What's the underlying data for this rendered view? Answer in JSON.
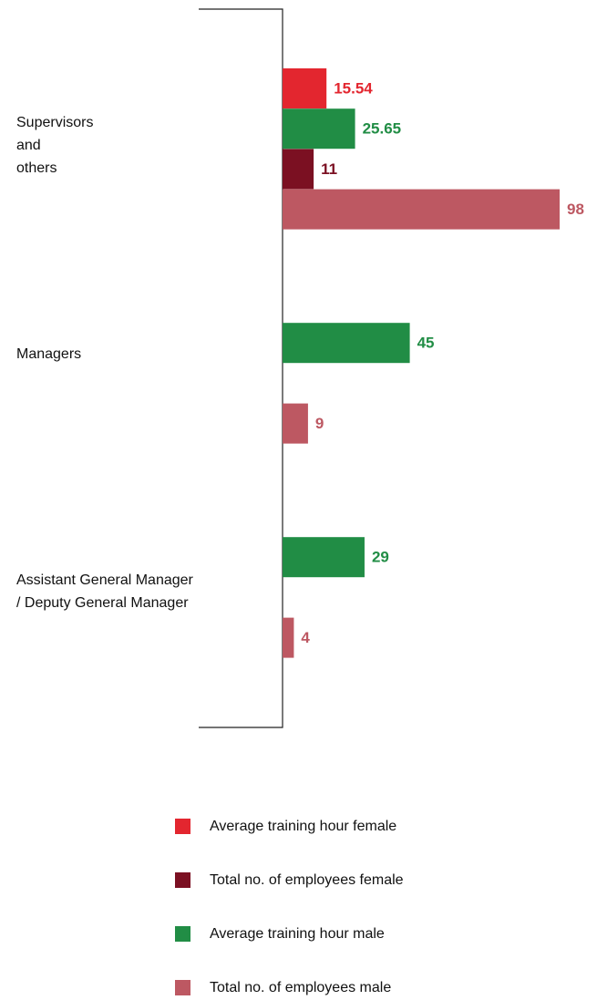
{
  "chart_data": {
    "type": "barh",
    "categories": [
      [
        "Supervisors",
        "and",
        "others"
      ],
      [
        "Managers"
      ],
      [
        "Assistant General Manager",
        "/ Deputy General Manager"
      ]
    ],
    "series": [
      {
        "name": "Average training hour female",
        "color": "#e3262f",
        "values": [
          15.54,
          null,
          null
        ]
      },
      {
        "name": "Total no. of employees female",
        "color": "#7b1022",
        "values": [
          11,
          null,
          null
        ]
      },
      {
        "name": "Average training hour male",
        "color": "#218d45",
        "values": [
          25.65,
          45,
          29
        ]
      },
      {
        "name": "Total no. of employees male",
        "color": "#bd5862",
        "values": [
          98,
          9,
          4
        ]
      }
    ]
  }
}
